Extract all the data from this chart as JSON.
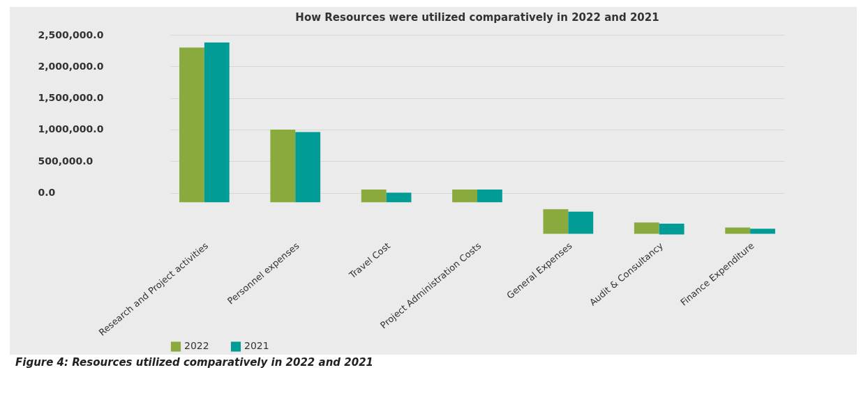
{
  "chart_data": {
    "type": "bar",
    "title": "How Resources were utilized comparatively in 2022 and 2021",
    "categories": [
      "Research and Project activities",
      "Personnel expenses",
      "Travel Cost",
      "Project Administration Costs",
      "General Expenses",
      "Audit & Consultancy",
      "Finance Expenditure"
    ],
    "series": [
      {
        "name": "2022",
        "color": "#8aaa3e",
        "base": [
          -150000,
          -150000,
          -150000,
          -150000,
          -650000,
          -650000,
          -650000
        ],
        "values": [
          2450000,
          1150000,
          200000,
          200000,
          390000,
          180000,
          100000
        ]
      },
      {
        "name": "2021",
        "color": "#009c95",
        "base": [
          -150000,
          -150000,
          -150000,
          -150000,
          -650000,
          -660000,
          -650000
        ],
        "values": [
          2530000,
          1110000,
          150000,
          200000,
          350000,
          170000,
          80000
        ]
      }
    ],
    "ylim": [
      -700000,
      2500000
    ],
    "yticks": [
      {
        "value": 0,
        "label": "0.0"
      },
      {
        "value": 500000,
        "label": "500,000.0"
      },
      {
        "value": 1000000,
        "label": "1,000,000.0"
      },
      {
        "value": 1500000,
        "label": "1,500,000.0"
      },
      {
        "value": 2000000,
        "label": "2,000,000.0"
      },
      {
        "value": 2500000,
        "label": "2,500,000.0"
      }
    ],
    "grid": "y",
    "legend": "bottom",
    "annotations": [
      "Figure 4: Resources utilized comparatively in 2022 and 2021"
    ]
  }
}
